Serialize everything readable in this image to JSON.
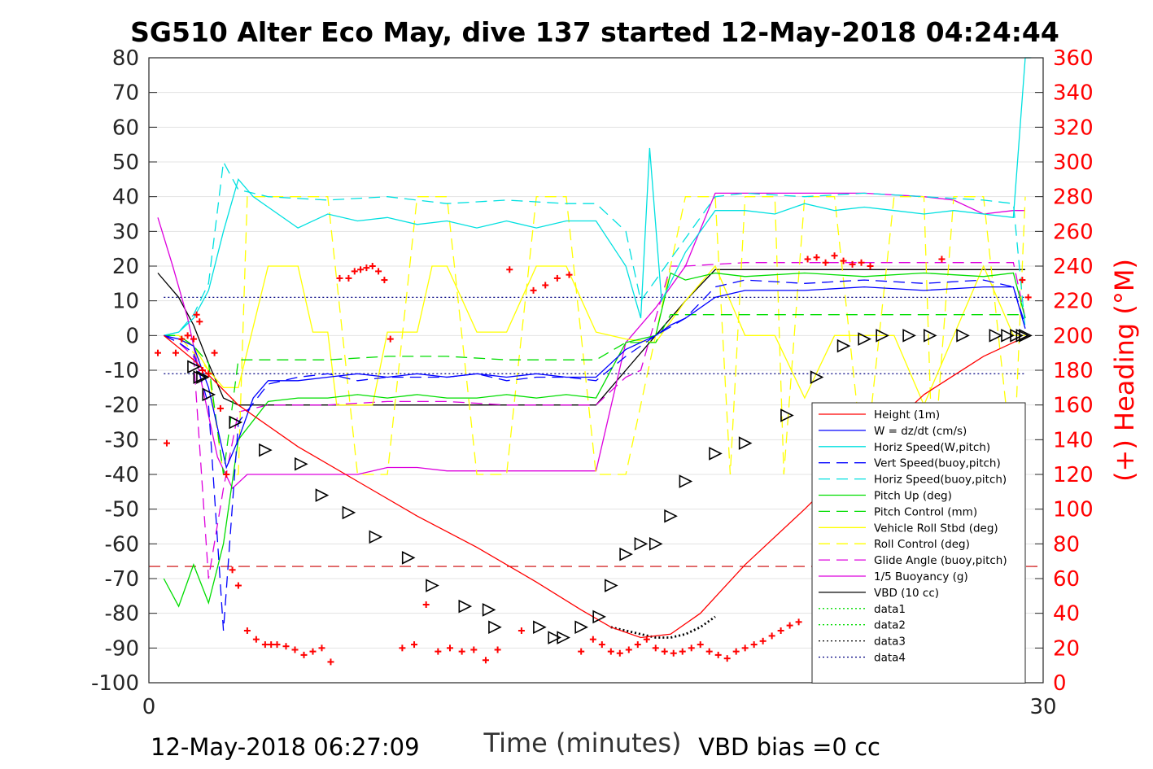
{
  "chart_data": {
    "type": "line",
    "title": "SG510 Alter Eco May, dive 137 started 12-May-2018 04:24:44",
    "xlabel": "Time (minutes)",
    "ylabel": "",
    "y2label": "(+) Heading (°M)",
    "xlim": [
      0,
      30
    ],
    "ylim": [
      -100,
      80
    ],
    "y2lim": [
      0,
      360
    ],
    "xticks": [
      "0",
      "30"
    ],
    "yticks": [
      "80",
      "70",
      "60",
      "50",
      "40",
      "30",
      "20",
      "10",
      "0",
      "-10",
      "-20",
      "-30",
      "-40",
      "-50",
      "-60",
      "-70",
      "-80",
      "-90",
      "-100"
    ],
    "y2ticks": [
      "360",
      "340",
      "320",
      "300",
      "280",
      "260",
      "240",
      "220",
      "200",
      "180",
      "160",
      "140",
      "120",
      "100",
      "80",
      "60",
      "40",
      "20",
      "0"
    ],
    "grid": true,
    "legend_position": "bottom-right",
    "footer_left": "12-May-2018 06:27:09",
    "footer_right": "VBD bias =0 cc",
    "series": [
      {
        "name": "Height (1m)",
        "color": "#ff0000",
        "style": "solid",
        "x": [
          0.5,
          1.5,
          3,
          5,
          7,
          9,
          11,
          13,
          14.5,
          15.5,
          16.5,
          17.5,
          18.5,
          20,
          22,
          24,
          26,
          28,
          29.5
        ],
        "y": [
          0,
          -7,
          -20,
          -32,
          -42,
          -52,
          -61,
          -71,
          -79,
          -84,
          -87,
          -86,
          -80,
          -66,
          -50,
          -33,
          -17,
          -6,
          0
        ]
      },
      {
        "name": "W = dz/dt (cm/s)",
        "color": "#0000ff",
        "style": "solid",
        "x": [
          0.5,
          1,
          1.5,
          2,
          2.6,
          3,
          3.5,
          4,
          5,
          6,
          7,
          8,
          9,
          10,
          11,
          12,
          13,
          14,
          15,
          16,
          17,
          17.5,
          18,
          19,
          20,
          22,
          24,
          26,
          28,
          29,
          29.4
        ],
        "y": [
          0,
          -1,
          -3,
          -15,
          -38,
          -30,
          -18,
          -13,
          -13,
          -12,
          -11,
          -12,
          -11,
          -12,
          -11,
          -12,
          -11,
          -12,
          -12,
          -4,
          0,
          3,
          5,
          11,
          13,
          13,
          14,
          13,
          14,
          14,
          2
        ]
      },
      {
        "name": "Horiz Speed(W,pitch)",
        "color": "#00e0e0",
        "style": "solid",
        "x": [
          0.5,
          1,
          1.5,
          2,
          2.5,
          3,
          3.5,
          4,
          5,
          6,
          7,
          8,
          9,
          10,
          11,
          12,
          13,
          14,
          15,
          16,
          16.5,
          16.8,
          17.2,
          18,
          19,
          20,
          21,
          22,
          23,
          24,
          25,
          26,
          27,
          28,
          29,
          29.4,
          29.6
        ],
        "y": [
          0,
          1,
          5,
          13,
          30,
          45,
          40,
          37,
          31,
          35,
          33,
          34,
          32,
          33,
          31,
          33,
          31,
          33,
          33,
          20,
          5,
          54,
          10,
          24,
          36,
          36,
          35,
          38,
          36,
          37,
          36,
          35,
          36,
          35,
          34,
          80,
          80
        ]
      },
      {
        "name": "Vert Speed(buoy,pitch)",
        "color": "#0000ff",
        "style": "dashed",
        "x": [
          0.5,
          1,
          1.5,
          2,
          2.5,
          3,
          4,
          5,
          6,
          7,
          8,
          9,
          10,
          11,
          12,
          13,
          14,
          15,
          16,
          17,
          18,
          19,
          20,
          22,
          24,
          26,
          28,
          29,
          29.4
        ],
        "y": [
          0,
          -2,
          -5,
          -20,
          -85,
          -25,
          -14,
          -12,
          -11,
          -13,
          -12,
          -12,
          -12,
          -11,
          -13,
          -12,
          -12,
          -13,
          -6,
          0,
          5,
          14,
          16,
          15,
          16,
          15,
          16,
          14,
          3
        ]
      },
      {
        "name": "Horiz Speed(buoy,pitch)",
        "color": "#00e0e0",
        "style": "dashed",
        "x": [
          0.5,
          1,
          1.5,
          2,
          2.5,
          3,
          3.5,
          4,
          6,
          8,
          10,
          12,
          14,
          15,
          16,
          16.5,
          17,
          18,
          19,
          20,
          22,
          24,
          26,
          28,
          29,
          29.4
        ],
        "y": [
          0,
          1,
          6,
          15,
          50,
          42,
          41,
          40,
          39,
          40,
          38,
          39,
          38,
          38,
          30,
          10,
          16,
          28,
          40,
          41,
          40,
          41,
          40,
          39,
          38,
          2
        ]
      },
      {
        "name": "Pitch Up (deg)",
        "color": "#00dd00",
        "style": "solid",
        "x": [
          0.5,
          1,
          1.5,
          2,
          2.5,
          3,
          4,
          5,
          6,
          7,
          8,
          9,
          10,
          11,
          12,
          13,
          14,
          15,
          16,
          17,
          17.5,
          18,
          19,
          20,
          22,
          24,
          26,
          28,
          29,
          29.4
        ],
        "y": [
          -70,
          -78,
          -66,
          -77,
          -60,
          -30,
          -19,
          -18,
          -18,
          -17,
          -18,
          -17,
          -18,
          -18,
          -17,
          -18,
          -17,
          -18,
          -2,
          0,
          18,
          16,
          18,
          17,
          18,
          17,
          18,
          17,
          18,
          5
        ]
      },
      {
        "name": "Pitch Control (mm)",
        "color": "#00dd00",
        "style": "dashed",
        "x": [
          0.5,
          1,
          1.5,
          2,
          2.5,
          3,
          4,
          6,
          8,
          10,
          12,
          14,
          15,
          16,
          16.5,
          17,
          17.5,
          18,
          20,
          22,
          24,
          26,
          28,
          29.3
        ],
        "y": [
          0,
          0,
          -3,
          -8,
          -40,
          -7,
          -7,
          -7,
          -6,
          -6,
          -7,
          -7,
          -7,
          -2,
          -2,
          -2,
          6,
          6,
          6,
          6,
          6,
          6,
          6,
          6
        ]
      },
      {
        "name": "Vehicle Roll Stbd (deg)",
        "color": "#ffff00",
        "style": "solid",
        "x": [
          0.5,
          1,
          1.5,
          2,
          2.5,
          3,
          4,
          5,
          5.5,
          6,
          6.3,
          7,
          7.5,
          8,
          9,
          9.5,
          10,
          11,
          12,
          13,
          14,
          15,
          16,
          17,
          18,
          19,
          20,
          21,
          22,
          23,
          24,
          25,
          26,
          27,
          28,
          29,
          29.4
        ],
        "y": [
          0,
          0,
          -3,
          -10,
          -15,
          -15,
          20,
          20,
          1,
          1,
          -20,
          -20,
          -20,
          1,
          1,
          20,
          20,
          1,
          1,
          20,
          20,
          1,
          -1,
          -2,
          10,
          20,
          0,
          0,
          -18,
          0,
          0,
          0,
          -20,
          0,
          20,
          0,
          0
        ]
      },
      {
        "name": "Roll Control (deg)",
        "color": "#ffff00",
        "style": "dashed",
        "x": [
          0.5,
          1,
          1.5,
          2,
          2.5,
          3,
          3.3,
          4,
          5,
          6,
          7,
          8,
          9,
          9.3,
          10,
          11,
          12,
          13,
          14,
          15,
          16,
          17,
          18,
          19,
          19.5,
          20,
          21,
          21.3,
          22,
          23,
          24,
          25,
          26,
          26.3,
          27,
          28,
          29,
          29.4
        ],
        "y": [
          0,
          0,
          -5,
          -10,
          -40,
          -40,
          40,
          40,
          40,
          40,
          -40,
          -40,
          40,
          40,
          40,
          -40,
          -40,
          40,
          40,
          -40,
          -40,
          0,
          40,
          40,
          -40,
          40,
          40,
          -40,
          40,
          40,
          -40,
          40,
          40,
          -40,
          40,
          40,
          -40,
          40
        ]
      },
      {
        "name": "Glide Angle (buoy,pitch)",
        "color": "#dd00dd",
        "style": "dashed",
        "x": [
          0.5,
          1,
          1.5,
          2,
          2.5,
          3,
          4,
          6,
          8,
          10,
          12,
          14,
          15,
          16,
          16.5,
          17,
          17.5,
          18,
          20,
          22,
          24,
          26,
          28,
          29,
          29.4
        ],
        "y": [
          0,
          -2,
          -6,
          -70,
          -44,
          -22,
          -20,
          -20,
          -19,
          -19,
          -20,
          -20,
          -20,
          -12,
          -10,
          5,
          20,
          20,
          21,
          21,
          21,
          21,
          21,
          21,
          5
        ]
      },
      {
        "name": "1/5 Buoyancy (g)",
        "color": "#dd00dd",
        "style": "solid",
        "x": [
          0.3,
          0.8,
          1.3,
          1.8,
          2.3,
          2.8,
          3.3,
          4,
          5,
          6,
          7,
          8,
          9,
          10,
          12,
          14,
          15,
          16,
          17,
          18,
          19,
          20,
          22,
          24,
          26,
          27,
          28,
          29,
          29.4
        ],
        "y": [
          34,
          20,
          5,
          -15,
          -35,
          -44,
          -40,
          -40,
          -40,
          -40,
          -40,
          -38,
          -38,
          -39,
          -39,
          -39,
          -39,
          -2,
          8,
          20,
          41,
          41,
          41,
          41,
          40,
          39,
          35,
          36,
          36
        ]
      },
      {
        "name": "VBD (10 cc)",
        "color": "#000000",
        "style": "solid",
        "x": [
          0.3,
          1,
          1.5,
          2,
          2.5,
          3,
          4,
          6,
          8,
          10,
          12,
          14,
          15,
          16,
          17,
          18,
          19,
          20,
          22,
          24,
          26,
          28,
          29,
          29.4
        ],
        "y": [
          18,
          11,
          3,
          -8,
          -18,
          -20,
          -20,
          -20,
          -20,
          -20,
          -20,
          -20,
          -20,
          -10,
          0,
          10,
          19,
          19,
          19,
          19,
          19,
          19,
          19,
          19
        ]
      },
      {
        "name": "data1",
        "color": "#00dd00",
        "style": "dotted",
        "x": [],
        "y": []
      },
      {
        "name": "data2",
        "color": "#00dd00",
        "style": "dotted",
        "x": [],
        "y": []
      },
      {
        "name": "data3",
        "color": "#000000",
        "style": "dotted",
        "x": [
          15.5,
          16,
          16.5,
          17,
          17.5,
          18,
          18.5,
          19
        ],
        "y": [
          -84,
          -85,
          -86,
          -87,
          -87,
          -86,
          -84,
          -81
        ]
      },
      {
        "name": "data4",
        "color": "#000080",
        "style": "dotted",
        "x": [
          0.5,
          29.4
        ],
        "y": [
          11,
          11
        ]
      }
    ],
    "reference_lines": [
      {
        "color": "#000080",
        "style": "dotted",
        "y": -11,
        "x": [
          0.5,
          29.4
        ]
      },
      {
        "color": "#cc0000",
        "style": "dashed",
        "y": -66.5,
        "x": [
          0,
          30
        ]
      }
    ],
    "triangle_markers": {
      "color": "#000000",
      "x": [
        1.5,
        1.7,
        1.8,
        2.0,
        2.9,
        3.9,
        5.1,
        5.8,
        6.7,
        7.6,
        8.7,
        9.5,
        10.6,
        11.4,
        11.6,
        13.1,
        13.6,
        13.9,
        14.5,
        15.1,
        15.5,
        16.0,
        16.5,
        17.0,
        17.5,
        18.0,
        19.0,
        20.0,
        21.4,
        22.4,
        23.3,
        24.0,
        24.6,
        25.5,
        26.2,
        27.3,
        28.4,
        28.8,
        29.1,
        29.3,
        29.4
      ],
      "y": [
        -9,
        -12,
        -12,
        -17,
        -25,
        -33,
        -37,
        -46,
        -51,
        -58,
        -64,
        -72,
        -78,
        -79,
        -84,
        -84,
        -87,
        -87,
        -84,
        -81,
        -72,
        -63,
        -60,
        -60,
        -52,
        -42,
        -34,
        -31,
        -23,
        -12,
        -3,
        -1,
        0,
        0,
        0,
        0,
        0,
        0,
        0,
        0,
        0
      ]
    },
    "heading": {
      "name": "(+) Heading (°M)",
      "color": "#ff0000",
      "axis": "right",
      "t": [
        0.3,
        0.6,
        0.9,
        1.1,
        1.3,
        1.5,
        1.6,
        1.7,
        1.8,
        2.0,
        2.2,
        2.4,
        2.6,
        2.8,
        3.0,
        3.3,
        3.6,
        3.9,
        4.1,
        4.3,
        4.6,
        4.9,
        5.2,
        5.5,
        5.8,
        6.1,
        6.4,
        6.7,
        6.9,
        7.1,
        7.3,
        7.5,
        7.7,
        7.9,
        8.1,
        8.5,
        8.9,
        9.3,
        9.7,
        10.1,
        10.5,
        10.9,
        11.3,
        11.7,
        12.1,
        12.5,
        12.9,
        13.3,
        13.7,
        14.1,
        14.5,
        14.9,
        15.2,
        15.5,
        15.8,
        16.1,
        16.4,
        16.7,
        17.0,
        17.3,
        17.6,
        17.9,
        18.2,
        18.5,
        18.8,
        19.1,
        19.4,
        19.7,
        20.0,
        20.3,
        20.6,
        20.9,
        21.2,
        21.5,
        21.8,
        22.1,
        22.4,
        22.7,
        23.0,
        23.3,
        23.6,
        23.9,
        24.2,
        24.5,
        24.8,
        25.1,
        25.4,
        25.7,
        26.0,
        26.3,
        26.6,
        26.9,
        27.2,
        27.5,
        27.8,
        28.1,
        28.4,
        28.7,
        29.0,
        29.3,
        29.5
      ],
      "v": [
        190,
        138,
        190,
        198,
        200,
        198,
        212,
        208,
        180,
        178,
        190,
        158,
        120,
        65,
        56,
        30,
        25,
        22,
        22,
        22,
        21,
        19,
        16,
        18,
        20,
        12,
        233,
        233,
        237,
        238,
        239,
        240,
        237,
        232,
        198,
        20,
        22,
        45,
        18,
        20,
        18,
        19,
        13,
        19,
        238,
        30,
        226,
        229,
        233,
        235,
        18,
        25,
        22,
        18,
        17,
        19,
        22,
        25,
        20,
        18,
        17,
        18,
        20,
        22,
        18,
        16,
        14,
        18,
        20,
        22,
        24,
        27,
        30,
        33,
        35,
        244,
        245,
        242,
        246,
        243,
        241,
        242,
        240,
        22,
        21,
        18,
        19,
        20,
        19,
        21,
        244,
        17,
        20,
        18,
        15,
        20,
        23,
        25,
        30,
        232,
        222
      ]
    }
  }
}
